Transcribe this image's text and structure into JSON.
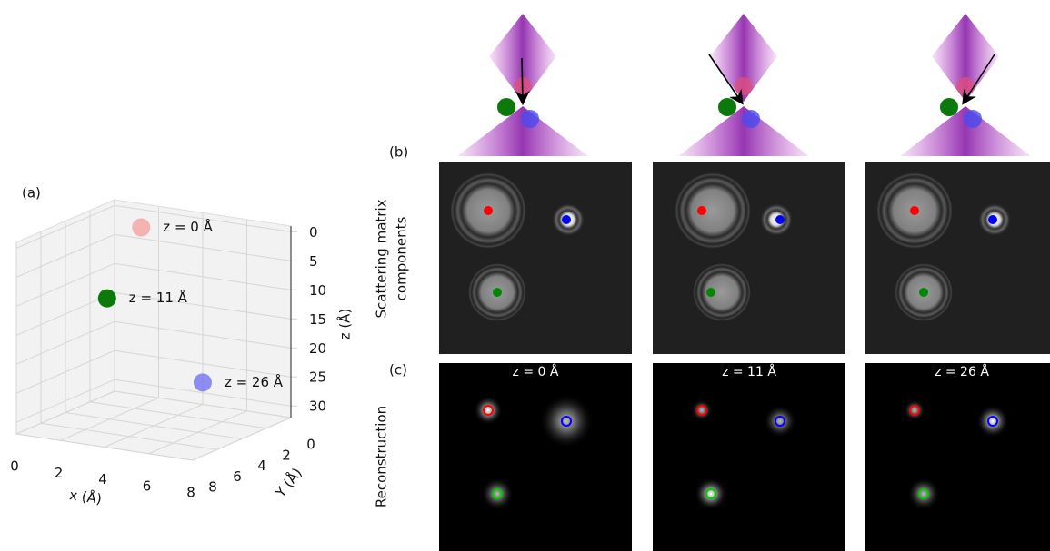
{
  "chart_data": {
    "type": "scatter3d",
    "panel_label": "(a)",
    "x_label": "x (Å)",
    "y_label": "Y (Å)",
    "z_label": "z (Å)",
    "xlim": [
      0,
      8
    ],
    "ylim": [
      0,
      8
    ],
    "zlim": [
      -1,
      32
    ],
    "z_inverted": true,
    "xticks": [
      0,
      2,
      4,
      6,
      8
    ],
    "yticks": [
      0,
      2,
      4,
      6,
      8
    ],
    "zticks": [
      0,
      5,
      10,
      15,
      20,
      25,
      30
    ],
    "grid": true,
    "points": [
      {
        "label": "z = 0 Å",
        "x": 2.6,
        "y": 2.5,
        "z": 0,
        "color": "#f4a3a3"
      },
      {
        "label": "z = 11 Å",
        "x": 2.0,
        "y": 4.2,
        "z": 11,
        "color": "#0b7a0b"
      },
      {
        "label": "z = 26 Å",
        "x": 5.0,
        "y": 1.8,
        "z": 26,
        "color": "#7373f0"
      }
    ]
  },
  "panels": {
    "b_label": "(b)",
    "c_label": "(c)",
    "scattering_label": [
      "Scattering matrix",
      "components"
    ],
    "reconstruction_label": "Reconstruction",
    "reconstruction_titles": [
      "z = 0 Å",
      "z = 11 Å",
      "z = 26 Å"
    ]
  }
}
